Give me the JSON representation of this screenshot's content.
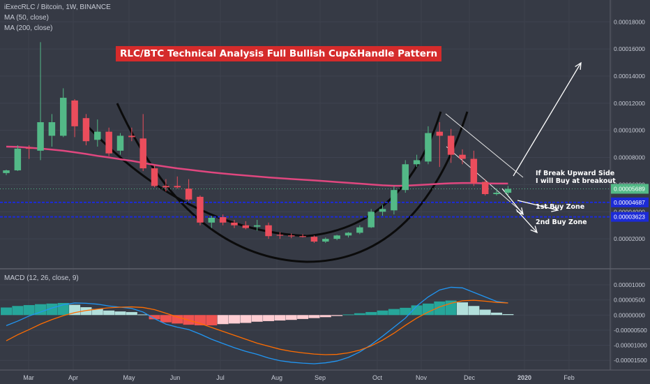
{
  "header": {
    "symbol_line": "iExecRLC / Bitcoin, 1W, BINANCE",
    "ma50_label": "MA (50, close)",
    "ma200_label": "MA (200, close)",
    "macd_label": "MACD (12, 26, close, 9)"
  },
  "annotations": {
    "title": "RLC/BTC Technical Analysis Full Bullish Cup&Handle Pattern",
    "breakout_line1": "If Break Upward Side",
    "breakout_line2": "I will Buy at breakout",
    "buy_zone_1": "1st Buy Zone",
    "buy_zone_2": "2nd Buy Zone"
  },
  "colors": {
    "background": "#363a45",
    "up_candle": "#53b987",
    "down_candle": "#eb4d5c",
    "ma200": "#e0477f",
    "macd_line": "#2196f3",
    "signal_line": "#ff6d00",
    "hist_up_strong": "#26a69a",
    "hist_up_weak": "#b2dfdb",
    "hist_down_strong": "#ef5350",
    "hist_down_weak": "#ffcdd2",
    "banner": "#d52b2b",
    "zone_line": "#1c2bd6"
  },
  "chart_data": [
    {
      "type": "candlestick",
      "title": "iExecRLC / Bitcoin, 1W, BINANCE",
      "y_axis_labels": [
        "0.00018000",
        "0.00016000",
        "0.00014000",
        "0.00012000",
        "0.00010000",
        "0.00008000",
        "0.00006000",
        "0.00004000",
        "0.00002000"
      ],
      "ylim": [
        5e-07,
        0.000193
      ],
      "x_axis_labels": [
        "Mar",
        "Apr",
        "May",
        "Jun",
        "Jul",
        "Aug",
        "Sep",
        "Oct",
        "Nov",
        "Dec",
        "2020",
        "Feb"
      ],
      "price_markers": [
        {
          "label": "0.00005689",
          "value": 5.689e-05,
          "style": "current"
        },
        {
          "label": "0.00004687",
          "value": 4.687e-05,
          "style": "zone"
        },
        {
          "label": "0.00003623",
          "value": 3.623e-05,
          "style": "zone"
        }
      ],
      "candles": [
        {
          "o": 6.85e-05,
          "h": 7.1e-05,
          "l": 6.7e-05,
          "c": 7.05e-05
        },
        {
          "o": 7.05e-05,
          "h": 8.9e-05,
          "l": 7e-05,
          "c": 8.65e-05
        },
        {
          "o": 8.7e-05,
          "h": 8.9e-05,
          "l": 7.9e-05,
          "c": 8.65e-05
        },
        {
          "o": 8.5e-05,
          "h": 0.000165,
          "l": 7.8e-05,
          "c": 0.000106
        },
        {
          "o": 9.6e-05,
          "h": 0.000112,
          "l": 8.8e-05,
          "c": 0.000106
        },
        {
          "o": 9.6e-05,
          "h": 0.000131,
          "l": 9.5e-05,
          "c": 0.000124
        },
        {
          "o": 0.000122,
          "h": 0.000123,
          "l": 9.5e-05,
          "c": 0.000103
        },
        {
          "o": 0.000109,
          "h": 0.000112,
          "l": 8.9e-05,
          "c": 9.2e-05
        },
        {
          "o": 9.3e-05,
          "h": 0.000108,
          "l": 8.8e-05,
          "c": 9.9e-05
        },
        {
          "o": 9.9e-05,
          "h": 0.000102,
          "l": 8.1e-05,
          "c": 8.3e-05
        },
        {
          "o": 8.5e-05,
          "h": 9.8e-05,
          "l": 8.2e-05,
          "c": 9.6e-05
        },
        {
          "o": 9.6e-05,
          "h": 0.000102,
          "l": 9.2e-05,
          "c": 9.5e-05
        },
        {
          "o": 9.4e-05,
          "h": 0.000112,
          "l": 7e-05,
          "c": 7.2e-05
        },
        {
          "o": 7.2e-05,
          "h": 7.5e-05,
          "l": 5.8e-05,
          "c": 5.9e-05
        },
        {
          "o": 5.9e-05,
          "h": 6.4e-05,
          "l": 5.5e-05,
          "c": 5.8e-05
        },
        {
          "o": 5.9e-05,
          "h": 6.6e-05,
          "l": 5.7e-05,
          "c": 5.8e-05
        },
        {
          "o": 5.7e-05,
          "h": 6.4e-05,
          "l": 4.8e-05,
          "c": 4.9e-05
        },
        {
          "o": 5.1e-05,
          "h": 5.2e-05,
          "l": 3e-05,
          "c": 3.2e-05
        },
        {
          "o": 3.2e-05,
          "h": 3.7e-05,
          "l": 2.8e-05,
          "c": 3.55e-05
        },
        {
          "o": 3.6e-05,
          "h": 3.8e-05,
          "l": 3e-05,
          "c": 3.2e-05
        },
        {
          "o": 3.2e-05,
          "h": 3.4e-05,
          "l": 2.8e-05,
          "c": 3e-05
        },
        {
          "o": 3e-05,
          "h": 3.3e-05,
          "l": 2.7e-05,
          "c": 2.8e-05
        },
        {
          "o": 2.9e-05,
          "h": 3.4e-05,
          "l": 2.6e-05,
          "c": 3e-05
        },
        {
          "o": 3e-05,
          "h": 3.2e-05,
          "l": 2e-05,
          "c": 2.2e-05
        },
        {
          "o": 2.3e-05,
          "h": 2.5e-05,
          "l": 2e-05,
          "c": 2.25e-05
        },
        {
          "o": 2.25e-05,
          "h": 2.4e-05,
          "l": 2.05e-05,
          "c": 2.2e-05
        },
        {
          "o": 2.2e-05,
          "h": 2.35e-05,
          "l": 2.1e-05,
          "c": 2.15e-05
        },
        {
          "o": 2.15e-05,
          "h": 2.25e-05,
          "l": 1.7e-05,
          "c": 1.8e-05
        },
        {
          "o": 1.8e-05,
          "h": 2.1e-05,
          "l": 1.7e-05,
          "c": 2e-05
        },
        {
          "o": 2e-05,
          "h": 2.3e-05,
          "l": 1.9e-05,
          "c": 2.25e-05
        },
        {
          "o": 2.25e-05,
          "h": 2.5e-05,
          "l": 2.1e-05,
          "c": 2.45e-05
        },
        {
          "o": 2.45e-05,
          "h": 3e-05,
          "l": 2.35e-05,
          "c": 2.85e-05
        },
        {
          "o": 2.85e-05,
          "h": 4.2e-05,
          "l": 2.8e-05,
          "c": 4e-05
        },
        {
          "o": 4e-05,
          "h": 4.5e-05,
          "l": 3.7e-05,
          "c": 4.2e-05
        },
        {
          "o": 4.1e-05,
          "h": 5.9e-05,
          "l": 3.8e-05,
          "c": 5.6e-05
        },
        {
          "o": 5.6e-05,
          "h": 7.8e-05,
          "l": 5.4e-05,
          "c": 7.5e-05
        },
        {
          "o": 7.5e-05,
          "h": 8.2e-05,
          "l": 7.3e-05,
          "c": 7.8e-05
        },
        {
          "o": 7.7e-05,
          "h": 0.000103,
          "l": 7.5e-05,
          "c": 9.8e-05
        },
        {
          "o": 9.9e-05,
          "h": 0.000106,
          "l": 7.3e-05,
          "c": 9.6e-05
        },
        {
          "o": 9.6e-05,
          "h": 0.000101,
          "l": 7.6e-05,
          "c": 8.2e-05
        },
        {
          "o": 8.2e-05,
          "h": 8.6e-05,
          "l": 7.5e-05,
          "c": 7.9e-05
        },
        {
          "o": 7.9e-05,
          "h": 8.5e-05,
          "l": 5.9e-05,
          "c": 6.1e-05
        },
        {
          "o": 6.2e-05,
          "h": 6.4e-05,
          "l": 5.2e-05,
          "c": 5.3e-05
        },
        {
          "o": 5.3e-05,
          "h": 5.7e-05,
          "l": 5.2e-05,
          "c": 5.4e-05
        },
        {
          "o": 5.4e-05,
          "h": 5.9e-05,
          "l": 5.2e-05,
          "c": 5.69e-05
        }
      ],
      "ma200": [
        8.8e-05,
        8.78e-05,
        8.72e-05,
        8.66e-05,
        8.58e-05,
        8.5e-05,
        8.38e-05,
        8.26e-05,
        8.12e-05,
        8e-05,
        7.87e-05,
        7.75e-05,
        7.6e-05,
        7.45e-05,
        7.32e-05,
        7.2e-05,
        7.1e-05,
        7e-05,
        6.9e-05,
        6.82e-05,
        6.74e-05,
        6.67e-05,
        6.6e-05,
        6.53e-05,
        6.47e-05,
        6.41e-05,
        6.36e-05,
        6.31e-05,
        6.25e-05,
        6.19e-05,
        6.13e-05,
        6.07e-05,
        6.01e-05,
        5.95e-05,
        5.91e-05,
        5.92e-05,
        5.96e-05,
        6.01e-05,
        6.06e-05,
        6.1e-05,
        6.12e-05,
        6.12e-05,
        6.09e-05,
        6.08e-05,
        6.08e-05
      ]
    },
    {
      "type": "macd",
      "title": "MACD (12, 26, close, 9)",
      "y_axis_labels": [
        "0.00001000",
        "0.00000500",
        "0.00000000",
        "-0.00000500",
        "-0.00001000",
        "-0.00001500"
      ],
      "ylim": [
        -1.68e-05,
        1.23e-05
      ],
      "histogram": [
        2.5e-06,
        3e-06,
        3.3e-06,
        3.6e-06,
        3.8e-06,
        4e-06,
        3.4e-06,
        2.6e-06,
        2e-06,
        1.5e-06,
        1.2e-06,
        1e-06,
        2e-07,
        -1.4e-06,
        -2.4e-06,
        -2.8e-06,
        -3.2e-06,
        -3.4e-06,
        -3.4e-06,
        -3e-06,
        -2.8e-06,
        -2.6e-06,
        -2.2e-06,
        -2e-06,
        -1.8e-06,
        -1.6e-06,
        -1.3e-06,
        -1e-06,
        -7e-07,
        -3e-07,
        2e-07,
        6e-07,
        1e-06,
        1.5e-06,
        2e-06,
        2.4e-06,
        3.2e-06,
        3.8e-06,
        4.5e-06,
        4.8e-06,
        4.2e-06,
        3e-06,
        1.8e-06,
        8e-07,
        3e-07
      ],
      "macd_line": [
        -3.5e-06,
        -2e-06,
        -3e-07,
        1e-06,
        2.3e-06,
        3.4e-06,
        4e-06,
        3.9e-06,
        3.6e-06,
        3e-06,
        2.6e-06,
        2.2e-06,
        1e-06,
        -1.2e-06,
        -3e-06,
        -4e-06,
        -4.8e-06,
        -6.3e-06,
        -8e-06,
        -9.4e-06,
        -1.08e-05,
        -1.2e-05,
        -1.3e-05,
        -1.42e-05,
        -1.51e-05,
        -1.56e-05,
        -1.59e-05,
        -1.61e-05,
        -1.58e-05,
        -1.52e-05,
        -1.4e-05,
        -1.22e-05,
        -9.8e-06,
        -7e-06,
        -4e-06,
        -1e-06,
        3e-06,
        6e-06,
        8.3e-06,
        9.2e-06,
        9e-06,
        7.5e-06,
        6e-06,
        4.5e-06,
        4e-06
      ],
      "signal_line": [
        -8.5e-06,
        -6.5e-06,
        -4.8e-06,
        -3e-06,
        -1.5e-06,
        -2e-07,
        8e-07,
        1.5e-06,
        2e-06,
        2.4e-06,
        2.6e-06,
        2.7e-06,
        2.5e-06,
        1.8e-06,
        6e-07,
        -6e-07,
        -1.7e-06,
        -2.8e-06,
        -4.1e-06,
        -5.4e-06,
        -6.7e-06,
        -8e-06,
        -9.3e-06,
        -1.03e-05,
        -1.13e-05,
        -1.2e-05,
        -1.25e-05,
        -1.29e-05,
        -1.31e-05,
        -1.3e-05,
        -1.25e-05,
        -1.16e-05,
        -1.02e-05,
        -8.3e-06,
        -6e-06,
        -3.4e-06,
        -1e-06,
        1e-06,
        2.7e-06,
        3.9e-06,
        4.7e-06,
        4.9e-06,
        4.6e-06,
        4.2e-06,
        4e-06
      ]
    }
  ]
}
